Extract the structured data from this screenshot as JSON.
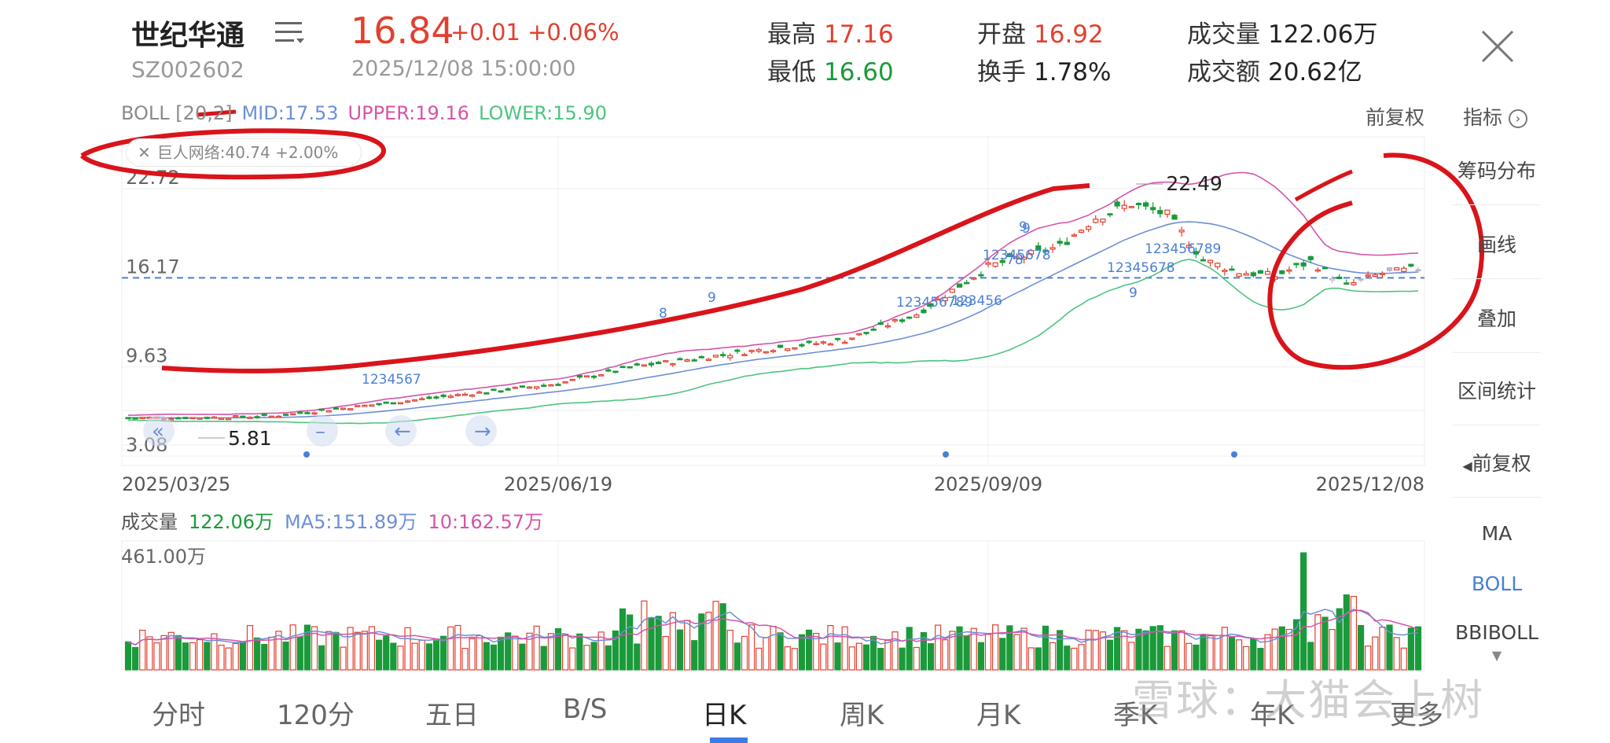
{
  "header": {
    "name": "世纪华通",
    "code": "SZ002602",
    "price": "16.84",
    "change": "+0.01 +0.06%",
    "datetime": "2025/12/08 15:00:00",
    "stats": [
      {
        "label": "最高",
        "value": "17.16",
        "color": "#e2402f"
      },
      {
        "label": "最低",
        "value": "16.60",
        "color": "#1a9a3a"
      },
      {
        "label": "开盘",
        "value": "16.92",
        "color": "#e2402f"
      },
      {
        "label": "换手",
        "value": "1.78%",
        "color": "#222222"
      },
      {
        "label": "成交量",
        "value": "122.06万",
        "color": "#222222"
      },
      {
        "label": "成交额",
        "value": "20.62亿",
        "color": "#222222"
      }
    ],
    "icons": [
      "list-icon",
      "close-icon"
    ]
  },
  "boll": {
    "title": "BOLL [20,2]",
    "mid": "MID:17.53",
    "upper": "UPPER:19.16",
    "lower": "LOWER:15.90"
  },
  "adjust_label": "前复权",
  "indicator_label": "指标",
  "overlay_pill": "巨人网络:40.74 +2.00%",
  "side_panel": {
    "items": [
      "筹码分布",
      "画线",
      "叠加",
      "区间统计",
      "前复权"
    ],
    "indicators": [
      "MA",
      "BOLL",
      "BBIBOLL"
    ]
  },
  "volume": {
    "title": "成交量",
    "value": "122.06万",
    "ma5": "MA5:151.89万",
    "ma10": "10:162.57万",
    "max_label": "461.00万"
  },
  "tabs": [
    "分时",
    "120分",
    "五日",
    "B/S",
    "日K",
    "周K",
    "月K",
    "季K",
    "年K",
    "更多"
  ],
  "active_tab": "日K",
  "watermark": "雪球：大猫会上树",
  "colors": {
    "up": "#e2402f",
    "down": "#1a9a3a",
    "mid": "#6c8fd6",
    "upper": "#d455a8",
    "lower": "#4dc47f",
    "annotation": "#d9141a"
  },
  "chart_data": {
    "type": "candlestick",
    "y_ticks": [
      "22.72",
      "16.17",
      "9.63",
      "3.08"
    ],
    "y_values": [
      22.72,
      16.17,
      9.63,
      3.08
    ],
    "ylim": [
      3.08,
      22.72
    ],
    "reference_line": 16.17,
    "x_ticks": [
      "2025/03/25",
      "2025/06/19",
      "2025/09/09",
      "2025/12/08"
    ],
    "x_tick_index": [
      0,
      60,
      120,
      180
    ],
    "annotations": [
      {
        "text": "22.49",
        "value": 22.49,
        "type": "high"
      },
      {
        "text": "5.81",
        "value": 5.81,
        "type": "low"
      }
    ],
    "sequence_labels": [
      "1234567",
      "8",
      "9",
      "123456789",
      "12345678",
      "9",
      "123456",
      "78",
      "9",
      "12345678",
      "9",
      "123456789"
    ],
    "key_closes": [
      [
        0,
        5.9
      ],
      [
        10,
        5.9
      ],
      [
        20,
        6.0
      ],
      [
        30,
        6.6
      ],
      [
        40,
        7.2
      ],
      [
        50,
        7.8
      ],
      [
        60,
        8.4
      ],
      [
        70,
        9.6
      ],
      [
        80,
        10.3
      ],
      [
        90,
        11.0
      ],
      [
        100,
        11.6
      ],
      [
        110,
        13.5
      ],
      [
        120,
        17.0
      ],
      [
        130,
        18.5
      ],
      [
        135,
        20.6
      ],
      [
        140,
        21.6
      ],
      [
        145,
        20.8
      ],
      [
        150,
        17.5
      ],
      [
        155,
        16.6
      ],
      [
        160,
        16.3
      ],
      [
        165,
        17.4
      ],
      [
        170,
        15.6
      ],
      [
        175,
        16.5
      ],
      [
        180,
        16.84
      ]
    ],
    "volume_ylim": [
      0,
      461.0
    ],
    "volume_unit": "万"
  }
}
